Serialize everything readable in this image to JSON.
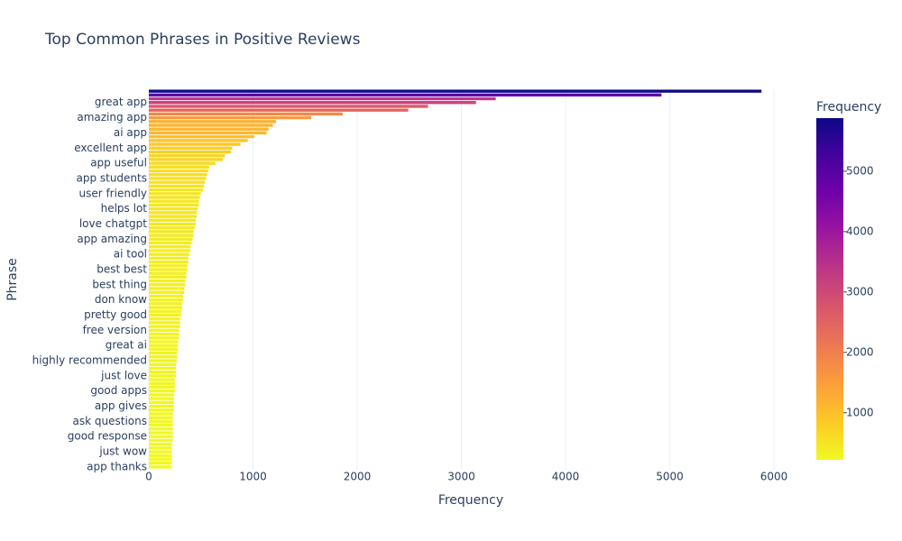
{
  "chart_data": {
    "type": "bar",
    "orientation": "horizontal",
    "title": "Top Common Phrases in Positive Reviews",
    "x_label": "Frequency",
    "y_label": "Phrase",
    "categories": [
      "app thanks",
      null,
      null,
      null,
      "just wow",
      null,
      null,
      null,
      "good response",
      null,
      null,
      null,
      "ask questions",
      null,
      null,
      null,
      "app gives",
      null,
      null,
      null,
      "good apps",
      null,
      null,
      null,
      "just love",
      null,
      null,
      null,
      "highly recommended",
      null,
      null,
      null,
      "great ai",
      null,
      null,
      null,
      "free version",
      null,
      null,
      null,
      "pretty good",
      null,
      null,
      null,
      "don know",
      null,
      null,
      null,
      "best thing",
      null,
      null,
      null,
      "best best",
      null,
      null,
      null,
      "ai tool",
      null,
      null,
      null,
      "app amazing",
      null,
      null,
      null,
      "love chatgpt",
      null,
      null,
      null,
      "helps lot",
      null,
      null,
      null,
      "user friendly",
      null,
      null,
      null,
      "app students",
      null,
      null,
      null,
      "app useful",
      null,
      null,
      null,
      "excellent app",
      null,
      null,
      null,
      "ai app",
      null,
      null,
      null,
      "amazing app",
      null,
      null,
      null,
      "great app",
      null,
      null,
      null
    ],
    "values": [
      220,
      220,
      220,
      220,
      220,
      220,
      220,
      230,
      230,
      230,
      230,
      230,
      230,
      230,
      230,
      240,
      240,
      240,
      240,
      240,
      250,
      250,
      250,
      250,
      260,
      260,
      260,
      260,
      270,
      270,
      270,
      280,
      280,
      280,
      290,
      290,
      290,
      300,
      300,
      300,
      310,
      310,
      320,
      320,
      330,
      330,
      340,
      340,
      350,
      350,
      360,
      360,
      370,
      370,
      380,
      380,
      390,
      400,
      400,
      410,
      420,
      430,
      430,
      440,
      450,
      450,
      460,
      460,
      470,
      480,
      480,
      490,
      500,
      520,
      530,
      540,
      550,
      560,
      570,
      580,
      640,
      710,
      730,
      790,
      800,
      880,
      950,
      1010,
      1130,
      1150,
      1190,
      1220,
      1560,
      1860,
      2490,
      2680,
      3140,
      3330,
      4920,
      5880
    ],
    "xlim": [
      0,
      6190
    ],
    "xticks": [
      0,
      1000,
      2000,
      3000,
      4000,
      5000,
      6000
    ],
    "grid": true,
    "colorscale": [
      "#f0f921",
      "#fdca26",
      "#fb9f3a",
      "#ed7953",
      "#d8576b",
      "#bd3786",
      "#9c179e",
      "#7201a8",
      "#46039f",
      "#0d0887"
    ],
    "colorbar_title": "Frequency",
    "colorbar_lim": [
      220,
      5880
    ],
    "colorbar_ticks": [
      1000,
      2000,
      3000,
      4000,
      5000
    ]
  }
}
